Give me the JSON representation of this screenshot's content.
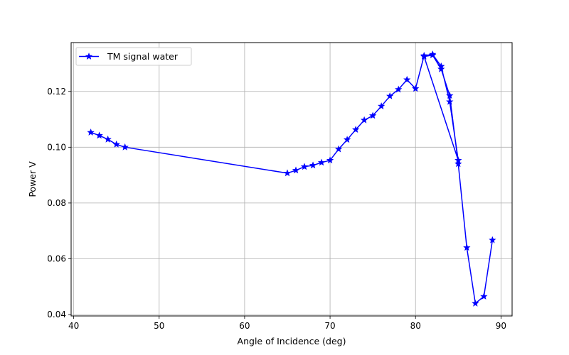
{
  "chart_data": {
    "type": "line",
    "xlabel": "Angle of Incidence (deg)",
    "ylabel": "Power V",
    "xlim": [
      39.7,
      91.3
    ],
    "ylim": [
      0.0395,
      0.1375
    ],
    "xticks": [
      40,
      50,
      60,
      70,
      80,
      90
    ],
    "xtick_labels": [
      "40",
      "50",
      "60",
      "70",
      "80",
      "90"
    ],
    "yticks": [
      0.04,
      0.06,
      0.08,
      0.1,
      0.12
    ],
    "ytick_labels": [
      "0.04",
      "0.06",
      "0.08",
      "0.10",
      "0.12"
    ],
    "grid": true,
    "legend": {
      "placement": "top-left",
      "entries": [
        "TM signal water"
      ]
    },
    "series": [
      {
        "name": "TM signal water",
        "color": "#0000ff",
        "marker": "star",
        "points": [
          [
            42,
            0.1053
          ],
          [
            43,
            0.1042
          ],
          [
            44,
            0.1028
          ],
          [
            45,
            0.101
          ],
          [
            46,
            0.1
          ],
          [
            65,
            0.0907
          ],
          [
            66,
            0.0917
          ],
          [
            67,
            0.093
          ],
          [
            68,
            0.0935
          ],
          [
            69,
            0.0945
          ],
          [
            70,
            0.0953
          ],
          [
            71,
            0.0993
          ],
          [
            72,
            0.1027
          ],
          [
            73,
            0.1063
          ],
          [
            74,
            0.1097
          ],
          [
            75,
            0.1113
          ],
          [
            76,
            0.1147
          ],
          [
            77,
            0.1183
          ],
          [
            78,
            0.1207
          ],
          [
            79,
            0.1242
          ],
          [
            80,
            0.121
          ],
          [
            81,
            0.1328
          ],
          [
            82,
            0.1333
          ],
          [
            83,
            0.129
          ],
          [
            84,
            0.1163
          ],
          [
            85,
            0.0953
          ],
          [
            81,
            0.1325
          ],
          [
            82,
            0.133
          ],
          [
            83,
            0.128
          ],
          [
            84,
            0.1185
          ],
          [
            85,
            0.094
          ],
          [
            86,
            0.064
          ],
          [
            87,
            0.044
          ],
          [
            88,
            0.0465
          ],
          [
            89,
            0.0667
          ]
        ]
      }
    ]
  }
}
